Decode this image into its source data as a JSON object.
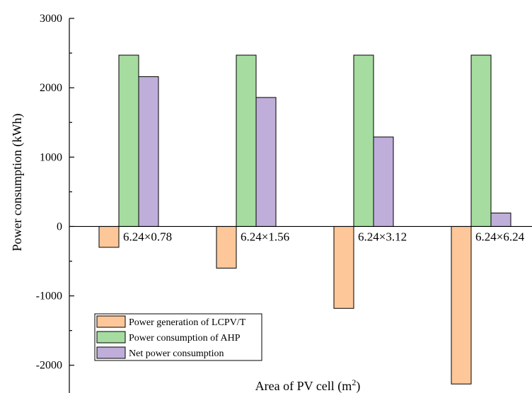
{
  "chart_data": {
    "type": "bar",
    "categories": [
      "6.24×0.78",
      "6.24×1.56",
      "6.24×3.12",
      "6.24×6.24"
    ],
    "series": [
      {
        "name": "Power generation of LCPV/T",
        "values": [
          -300,
          -600,
          -1180,
          -2270
        ],
        "color": "#FDC79A"
      },
      {
        "name": "Power consumption of AHP",
        "values": [
          2470,
          2470,
          2470,
          2470
        ],
        "color": "#A6DCA0"
      },
      {
        "name": "Net power consumption",
        "values": [
          2160,
          1860,
          1290,
          195
        ],
        "color": "#BFAEDA"
      }
    ],
    "ylabel": "Power consumption (kWh)",
    "xlabel_prefix": "Area of PV cell (m",
    "xlabel_sup": "2",
    "xlabel_suffix": ")",
    "ylim": [
      -2400,
      3000
    ],
    "yticks": [
      -2000,
      -1000,
      0,
      1000,
      2000,
      3000
    ],
    "ytick_labels": [
      "-2000",
      "-1000",
      "0",
      "1000",
      "2000",
      "3000"
    ],
    "grid": false,
    "legend_position": "bottom-left"
  }
}
